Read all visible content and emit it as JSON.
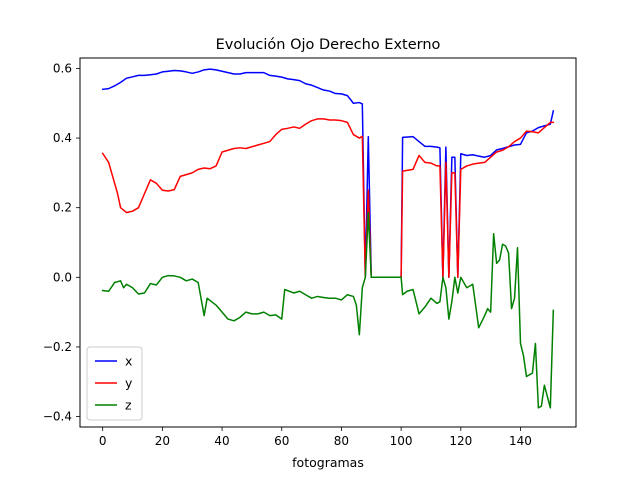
{
  "chart_data": {
    "type": "line",
    "title": "Evolución Ojo Derecho Externo",
    "xlabel": "fotogramas",
    "ylabel": "",
    "xlim": [
      -7.6,
      158.6
    ],
    "ylim": [
      -0.43,
      0.63
    ],
    "xticks": [
      0,
      20,
      40,
      60,
      80,
      100,
      120,
      140
    ],
    "yticks": [
      -0.4,
      -0.2,
      0.0,
      0.2,
      0.4,
      0.6
    ],
    "ytick_labels": [
      "−0.4",
      "−0.2",
      "0.0",
      "0.2",
      "0.4",
      "0.6"
    ],
    "grid": false,
    "legend": {
      "position": "lower-left"
    },
    "series": [
      {
        "name": "x",
        "color": "#0000ff",
        "points": [
          [
            0,
            0.54
          ],
          [
            2,
            0.542
          ],
          [
            4,
            0.55
          ],
          [
            6,
            0.56
          ],
          [
            8,
            0.572
          ],
          [
            10,
            0.576
          ],
          [
            12,
            0.58
          ],
          [
            14,
            0.58
          ],
          [
            16,
            0.582
          ],
          [
            18,
            0.584
          ],
          [
            20,
            0.59
          ],
          [
            22,
            0.592
          ],
          [
            24,
            0.594
          ],
          [
            26,
            0.593
          ],
          [
            28,
            0.59
          ],
          [
            30,
            0.586
          ],
          [
            32,
            0.59
          ],
          [
            34,
            0.596
          ],
          [
            36,
            0.598
          ],
          [
            38,
            0.596
          ],
          [
            40,
            0.592
          ],
          [
            42,
            0.588
          ],
          [
            44,
            0.584
          ],
          [
            46,
            0.584
          ],
          [
            48,
            0.588
          ],
          [
            50,
            0.588
          ],
          [
            52,
            0.588
          ],
          [
            54,
            0.588
          ],
          [
            56,
            0.58
          ],
          [
            58,
            0.578
          ],
          [
            60,
            0.575
          ],
          [
            62,
            0.57
          ],
          [
            64,
            0.568
          ],
          [
            66,
            0.565
          ],
          [
            68,
            0.556
          ],
          [
            70,
            0.552
          ],
          [
            72,
            0.545
          ],
          [
            74,
            0.538
          ],
          [
            76,
            0.535
          ],
          [
            78,
            0.528
          ],
          [
            80,
            0.527
          ],
          [
            82,
            0.522
          ],
          [
            84,
            0.5
          ],
          [
            86,
            0.502
          ],
          [
            87,
            0.498
          ],
          [
            88,
            0.0
          ],
          [
            89,
            0.404
          ],
          [
            90,
            0.0
          ],
          [
            100,
            0.0
          ],
          [
            100.5,
            0.402
          ],
          [
            104,
            0.404
          ],
          [
            106,
            0.39
          ],
          [
            108,
            0.376
          ],
          [
            110,
            0.376
          ],
          [
            112,
            0.374
          ],
          [
            113,
            0.372
          ],
          [
            114,
            0.0
          ],
          [
            115,
            0.374
          ],
          [
            116,
            0.0
          ],
          [
            117,
            0.345
          ],
          [
            118,
            0.345
          ],
          [
            119,
            0.0
          ],
          [
            120,
            0.355
          ],
          [
            122,
            0.35
          ],
          [
            124,
            0.352
          ],
          [
            126,
            0.348
          ],
          [
            128,
            0.345
          ],
          [
            130,
            0.35
          ],
          [
            132,
            0.366
          ],
          [
            134,
            0.37
          ],
          [
            136,
            0.375
          ],
          [
            138,
            0.38
          ],
          [
            140,
            0.382
          ],
          [
            142,
            0.415
          ],
          [
            144,
            0.42
          ],
          [
            146,
            0.43
          ],
          [
            148,
            0.435
          ],
          [
            150,
            0.44
          ],
          [
            151,
            0.478
          ]
        ]
      },
      {
        "name": "y",
        "color": "#ff0000",
        "points": [
          [
            0,
            0.356
          ],
          [
            2,
            0.33
          ],
          [
            4,
            0.27
          ],
          [
            5,
            0.24
          ],
          [
            6,
            0.2
          ],
          [
            8,
            0.186
          ],
          [
            10,
            0.19
          ],
          [
            12,
            0.2
          ],
          [
            14,
            0.24
          ],
          [
            16,
            0.28
          ],
          [
            18,
            0.27
          ],
          [
            20,
            0.25
          ],
          [
            22,
            0.248
          ],
          [
            24,
            0.252
          ],
          [
            26,
            0.29
          ],
          [
            28,
            0.295
          ],
          [
            30,
            0.3
          ],
          [
            32,
            0.31
          ],
          [
            34,
            0.314
          ],
          [
            36,
            0.312
          ],
          [
            38,
            0.32
          ],
          [
            40,
            0.36
          ],
          [
            42,
            0.365
          ],
          [
            44,
            0.37
          ],
          [
            46,
            0.372
          ],
          [
            48,
            0.37
          ],
          [
            50,
            0.375
          ],
          [
            52,
            0.38
          ],
          [
            54,
            0.385
          ],
          [
            56,
            0.39
          ],
          [
            58,
            0.41
          ],
          [
            60,
            0.425
          ],
          [
            62,
            0.428
          ],
          [
            64,
            0.432
          ],
          [
            66,
            0.428
          ],
          [
            68,
            0.44
          ],
          [
            70,
            0.45
          ],
          [
            72,
            0.455
          ],
          [
            74,
            0.455
          ],
          [
            76,
            0.452
          ],
          [
            78,
            0.452
          ],
          [
            80,
            0.45
          ],
          [
            82,
            0.445
          ],
          [
            84,
            0.41
          ],
          [
            86,
            0.4
          ],
          [
            87,
            0.405
          ],
          [
            88,
            0.0
          ],
          [
            89,
            0.25
          ],
          [
            90,
            0.0
          ],
          [
            100,
            0.0
          ],
          [
            100.5,
            0.305
          ],
          [
            104,
            0.31
          ],
          [
            106,
            0.35
          ],
          [
            108,
            0.33
          ],
          [
            110,
            0.328
          ],
          [
            112,
            0.32
          ],
          [
            113,
            0.32
          ],
          [
            114,
            0.0
          ],
          [
            115,
            0.33
          ],
          [
            116,
            0.0
          ],
          [
            117,
            0.3
          ],
          [
            118,
            0.3
          ],
          [
            119,
            0.0
          ],
          [
            120,
            0.31
          ],
          [
            122,
            0.32
          ],
          [
            124,
            0.325
          ],
          [
            126,
            0.328
          ],
          [
            128,
            0.33
          ],
          [
            130,
            0.345
          ],
          [
            132,
            0.36
          ],
          [
            134,
            0.365
          ],
          [
            136,
            0.375
          ],
          [
            138,
            0.39
          ],
          [
            140,
            0.4
          ],
          [
            142,
            0.42
          ],
          [
            144,
            0.418
          ],
          [
            146,
            0.415
          ],
          [
            148,
            0.43
          ],
          [
            150,
            0.445
          ],
          [
            151,
            0.445
          ]
        ]
      },
      {
        "name": "z",
        "color": "#008000",
        "points": [
          [
            0,
            -0.038
          ],
          [
            2,
            -0.04
          ],
          [
            4,
            -0.015
          ],
          [
            6,
            -0.01
          ],
          [
            7,
            -0.03
          ],
          [
            8,
            -0.02
          ],
          [
            10,
            -0.03
          ],
          [
            12,
            -0.048
          ],
          [
            14,
            -0.045
          ],
          [
            16,
            -0.018
          ],
          [
            18,
            -0.022
          ],
          [
            20,
            0.0
          ],
          [
            22,
            0.005
          ],
          [
            24,
            0.004
          ],
          [
            26,
            0.0
          ],
          [
            28,
            -0.01
          ],
          [
            30,
            -0.005
          ],
          [
            32,
            -0.015
          ],
          [
            34,
            -0.11
          ],
          [
            35,
            -0.06
          ],
          [
            38,
            -0.08
          ],
          [
            40,
            -0.1
          ],
          [
            42,
            -0.12
          ],
          [
            44,
            -0.125
          ],
          [
            46,
            -0.115
          ],
          [
            48,
            -0.1
          ],
          [
            50,
            -0.105
          ],
          [
            52,
            -0.105
          ],
          [
            54,
            -0.1
          ],
          [
            56,
            -0.11
          ],
          [
            58,
            -0.108
          ],
          [
            60,
            -0.12
          ],
          [
            61,
            -0.035
          ],
          [
            64,
            -0.045
          ],
          [
            66,
            -0.04
          ],
          [
            68,
            -0.05
          ],
          [
            70,
            -0.06
          ],
          [
            72,
            -0.055
          ],
          [
            74,
            -0.058
          ],
          [
            76,
            -0.06
          ],
          [
            78,
            -0.06
          ],
          [
            80,
            -0.065
          ],
          [
            82,
            -0.05
          ],
          [
            84,
            -0.055
          ],
          [
            85,
            -0.08
          ],
          [
            86,
            -0.165
          ],
          [
            87,
            -0.03
          ],
          [
            88,
            0.0
          ],
          [
            89,
            0.185
          ],
          [
            90,
            0.0
          ],
          [
            100,
            0.0
          ],
          [
            100.5,
            -0.05
          ],
          [
            102,
            -0.04
          ],
          [
            104,
            -0.035
          ],
          [
            106,
            -0.105
          ],
          [
            108,
            -0.085
          ],
          [
            110,
            -0.06
          ],
          [
            112,
            -0.075
          ],
          [
            113,
            -0.07
          ],
          [
            114,
            0.0
          ],
          [
            115,
            -0.03
          ],
          [
            116,
            -0.12
          ],
          [
            117,
            -0.07
          ],
          [
            118,
            0.0
          ],
          [
            119,
            -0.045
          ],
          [
            120,
            0.0
          ],
          [
            122,
            -0.03
          ],
          [
            124,
            -0.02
          ],
          [
            126,
            -0.145
          ],
          [
            128,
            -0.11
          ],
          [
            129,
            -0.09
          ],
          [
            130,
            -0.1
          ],
          [
            131,
            0.125
          ],
          [
            132,
            0.04
          ],
          [
            133,
            0.05
          ],
          [
            134,
            0.095
          ],
          [
            135,
            0.09
          ],
          [
            136,
            0.07
          ],
          [
            137,
            -0.09
          ],
          [
            138,
            -0.06
          ],
          [
            139,
            0.085
          ],
          [
            140,
            -0.19
          ],
          [
            141,
            -0.225
          ],
          [
            142,
            -0.285
          ],
          [
            144,
            -0.275
          ],
          [
            145,
            -0.19
          ],
          [
            146,
            -0.375
          ],
          [
            147,
            -0.37
          ],
          [
            148,
            -0.31
          ],
          [
            150,
            -0.375
          ],
          [
            151,
            -0.095
          ]
        ]
      }
    ]
  }
}
